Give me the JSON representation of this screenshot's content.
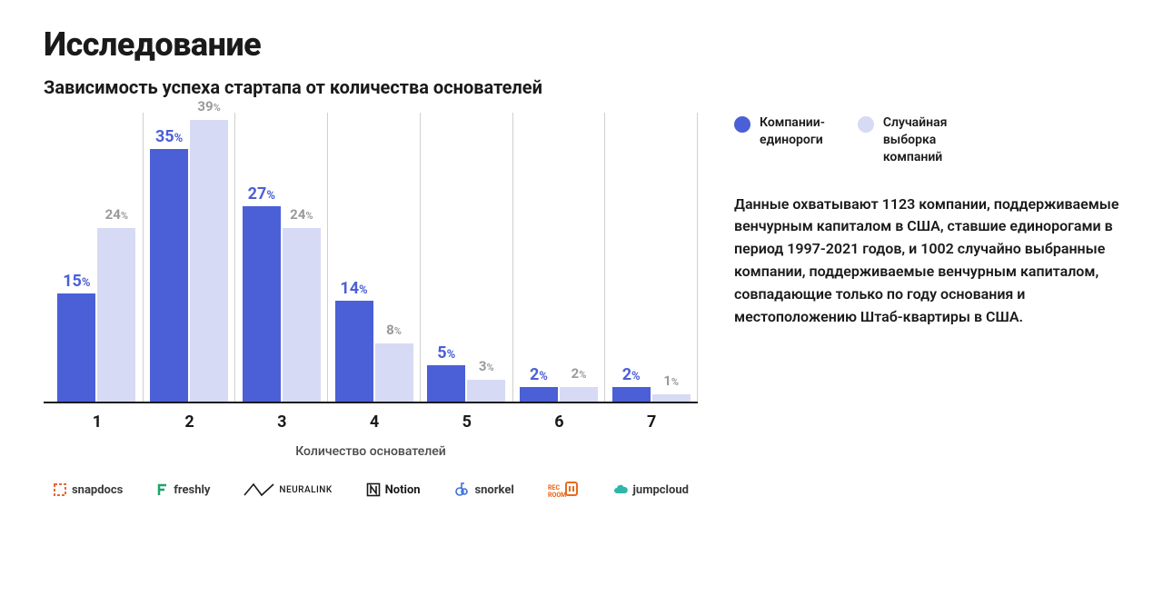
{
  "title": "Исследование",
  "subtitle": "Зависимость успеха стартапа от количества основателей",
  "chart": {
    "type": "bar",
    "x_axis_title": "Количество основателей",
    "categories": [
      "1",
      "2",
      "3",
      "4",
      "5",
      "6",
      "7"
    ],
    "max_value": 40,
    "series": [
      {
        "id": "unicorns",
        "label": "Компании-\nединороги",
        "color": "#4b5fd6",
        "values": [
          15,
          35,
          27,
          14,
          5,
          2,
          2
        ]
      },
      {
        "id": "random",
        "label": "Случайная\nвыборка\nкомпаний",
        "color": "#d7daf5",
        "values": [
          24,
          39,
          24,
          8,
          3,
          2,
          1
        ]
      }
    ],
    "background_color": "#ffffff",
    "divider_color": "#d0d0d0",
    "axis_color": "#1a1a1a",
    "label_font_size": 18,
    "secondary_label_color": "#9a9a9a"
  },
  "description": "Данные охватывают 1123 компании, поддерживаемые венчурным капиталом в США, ставшие единорогами в период 1997-2021 годов, и 1002 случайно выбранные компании, поддерживаемые венчурным капиталом, совпадающие только по году основания и местоположению Штаб-квартиры в США.",
  "logos": [
    {
      "id": "snapdocs",
      "label": "snapdocs",
      "iconColor": "#e8673c"
    },
    {
      "id": "freshly",
      "label": "freshly",
      "iconColor": "#1fa36a"
    },
    {
      "id": "neuralink",
      "label": "NEURALINK",
      "iconColor": "#1a1a1a"
    },
    {
      "id": "notion",
      "label": "Notion",
      "iconColor": "#1a1a1a"
    },
    {
      "id": "snorkel",
      "label": "snorkel",
      "iconColor": "#3a6fd8"
    },
    {
      "id": "recroom",
      "label": "REC ROOM",
      "iconColor": "#e86a1f"
    },
    {
      "id": "jumpcloud",
      "label": "jumpcloud",
      "iconColor": "#2fb6a8"
    }
  ]
}
